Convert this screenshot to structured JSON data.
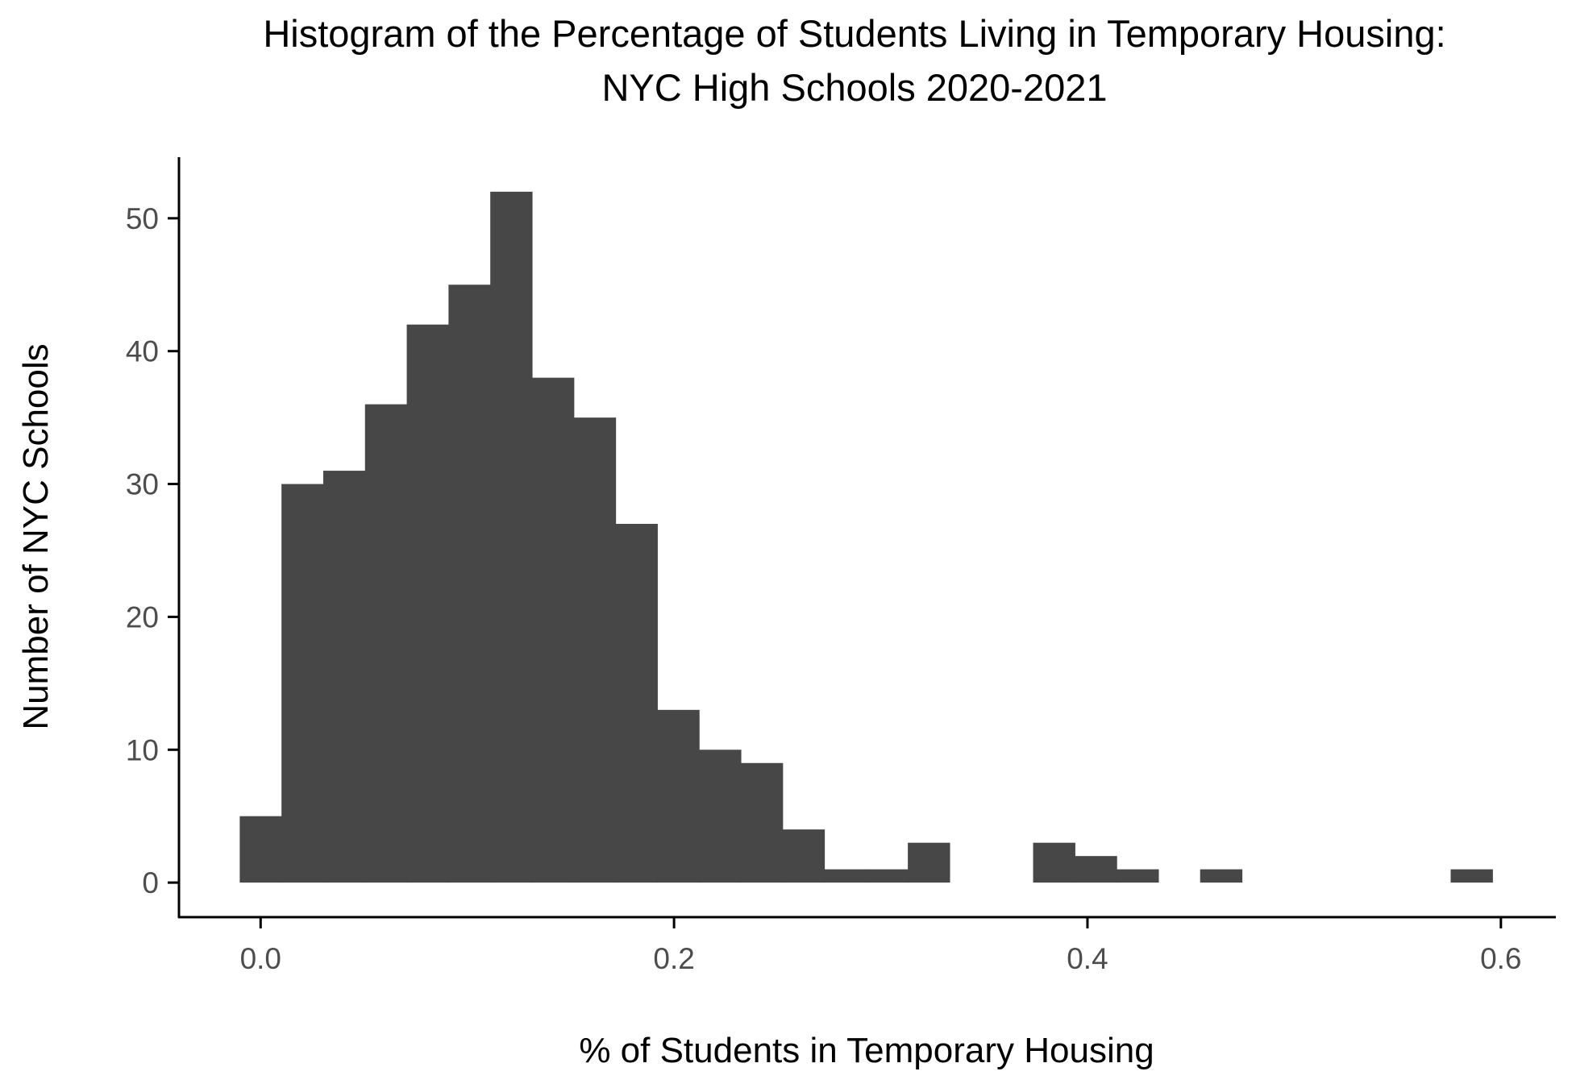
{
  "chart_data": {
    "type": "bar",
    "title": "Histogram of the Percentage of Students Living in Temporary Housing:",
    "subtitle": "NYC High Schools 2020-2021",
    "xlabel": "% of Students in Temporary Housing",
    "ylabel": "Number of NYC Schools",
    "xlim": [
      -0.0395,
      0.6266
    ],
    "ylim": [
      -2.6,
      54.6
    ],
    "bin_width": 0.0202,
    "x_ticks": [
      0.0,
      0.2,
      0.4,
      0.6
    ],
    "x_tick_labels": [
      "0.0",
      "0.2",
      "0.4",
      "0.6"
    ],
    "y_ticks": [
      0,
      10,
      20,
      30,
      40,
      50
    ],
    "y_tick_labels": [
      "0",
      "10",
      "20",
      "30",
      "40",
      "50"
    ],
    "bar_color": "#474747",
    "grid": false,
    "legend": "none",
    "x": [
      0.0,
      0.0202,
      0.0404,
      0.0606,
      0.0808,
      0.101,
      0.1212,
      0.1414,
      0.1616,
      0.1818,
      0.202,
      0.2222,
      0.2424,
      0.2626,
      0.2828,
      0.303,
      0.3232,
      0.3434,
      0.3636,
      0.3838,
      0.404,
      0.4242,
      0.4444,
      0.4646,
      0.4848,
      0.505,
      0.5252,
      0.5454,
      0.5656,
      0.5858
    ],
    "values": [
      5,
      30,
      31,
      36,
      42,
      45,
      52,
      38,
      35,
      27,
      13,
      10,
      9,
      4,
      1,
      1,
      3,
      0,
      0,
      3,
      2,
      1,
      0,
      1,
      0,
      0,
      0,
      0,
      0,
      1
    ]
  }
}
